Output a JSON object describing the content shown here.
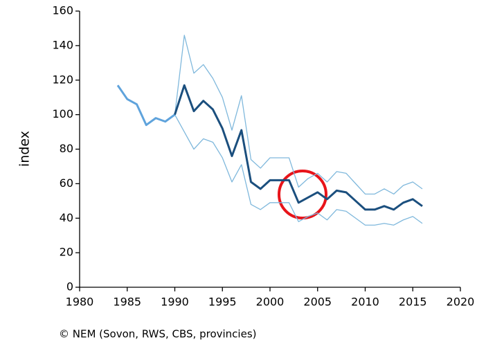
{
  "chart_data": {
    "type": "line",
    "ylabel": "index",
    "source": "© NEM (Sovon, RWS, CBS, provincies)",
    "x": [
      1984,
      1985,
      1986,
      1987,
      1988,
      1989,
      1990,
      1991,
      1992,
      1993,
      1994,
      1995,
      1996,
      1997,
      1998,
      1999,
      2000,
      2001,
      2002,
      2003,
      2004,
      2005,
      2006,
      2007,
      2008,
      2009,
      2010,
      2011,
      2012,
      2013,
      2014,
      2015,
      2016
    ],
    "series": [
      {
        "color": "#7fb8dc",
        "width": 1.3,
        "values": [
          null,
          null,
          null,
          null,
          null,
          null,
          100,
          146,
          124,
          129,
          121,
          110,
          91,
          111,
          74,
          69,
          75,
          75,
          75,
          58,
          63,
          66,
          61,
          67,
          66,
          60,
          54,
          54,
          57,
          54,
          59,
          61,
          57
        ]
      },
      {
        "color": "#7fb8dc",
        "width": 1.3,
        "values": [
          null,
          null,
          null,
          null,
          null,
          null,
          100,
          90,
          80,
          86,
          84,
          75,
          61,
          71,
          48,
          45,
          49,
          49,
          49,
          38,
          41,
          43,
          39,
          45,
          44,
          40,
          36,
          36,
          37,
          36,
          39,
          41,
          37
        ]
      },
      {
        "color": "#5fa3dc",
        "width": 3,
        "values": [
          117,
          109,
          106,
          94,
          98,
          96,
          100,
          null,
          null,
          null,
          null,
          null,
          null,
          null,
          null,
          null,
          null,
          null,
          null,
          null,
          null,
          null,
          null,
          null,
          null,
          null,
          null,
          null,
          null,
          null,
          null,
          null,
          null
        ]
      },
      {
        "color": "#1b4f7e",
        "width": 3,
        "values": [
          null,
          null,
          null,
          null,
          null,
          null,
          100,
          117,
          102,
          108,
          103,
          92,
          76,
          91,
          61,
          57,
          62,
          62,
          62,
          49,
          52,
          55,
          51,
          56,
          55,
          50,
          45,
          45,
          47,
          45,
          49,
          51,
          47
        ]
      }
    ],
    "xlim": [
      1980,
      2020
    ],
    "xticks": [
      1980,
      1985,
      1990,
      1995,
      2000,
      2005,
      2010,
      2015,
      2020
    ],
    "ylim": [
      0,
      160
    ],
    "yticks": [
      0,
      20,
      40,
      60,
      80,
      100,
      120,
      140,
      160
    ],
    "grid": false
  }
}
